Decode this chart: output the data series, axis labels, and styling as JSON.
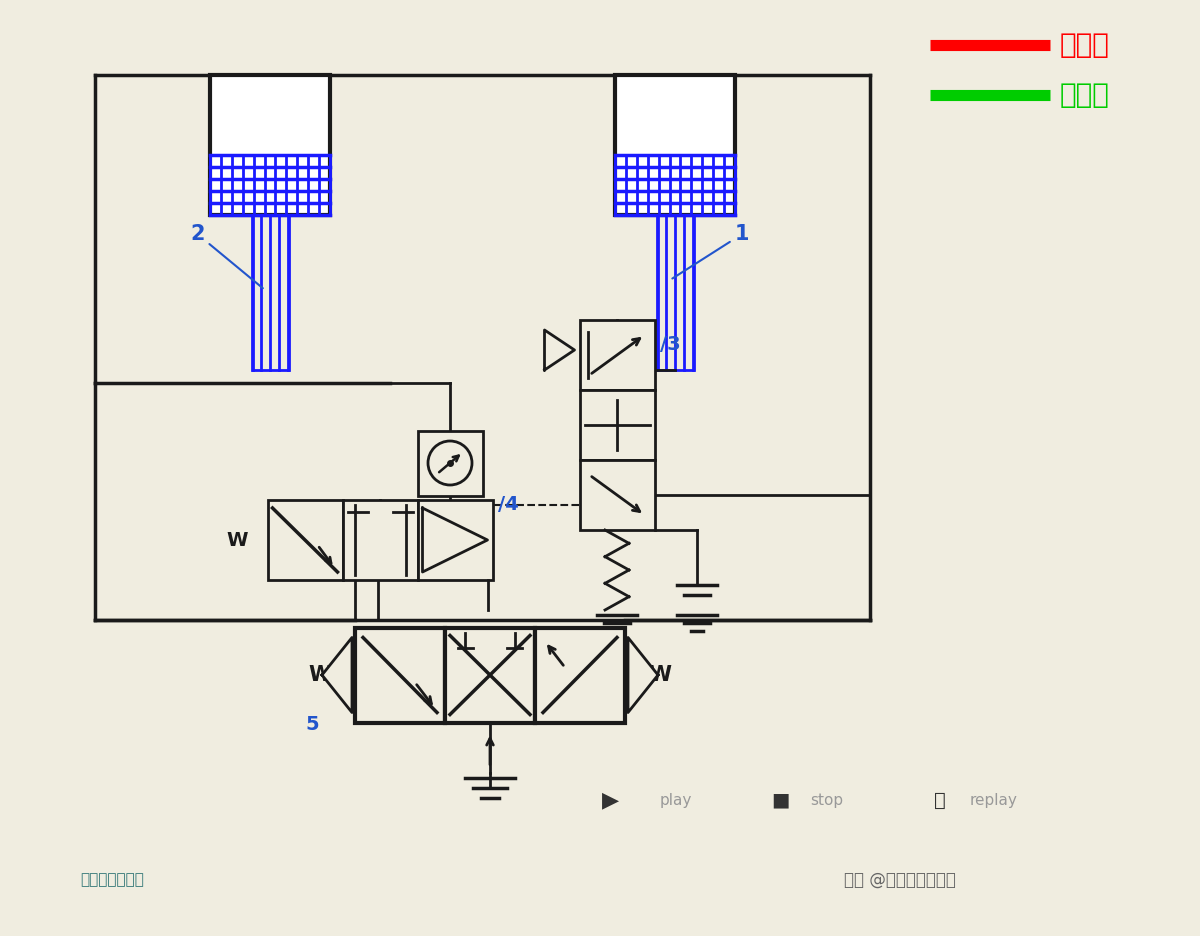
{
  "bg_color": "#f0ede0",
  "line_color": "#1a1a1a",
  "blue_color": "#1a1aff",
  "red_color": "#ff0000",
  "green_color": "#00cc00",
  "label_color": "#2255cc",
  "legend_red_label": "进油路",
  "legend_green_label": "回油路",
  "cylinder1_label": "1",
  "cylinder2_label": "2",
  "valve3_label": "/3",
  "valve4_label": "/4",
  "valve5_label": "5",
  "bottom_text1": "头条 @机械工程师笔记",
  "bottom_text2": "机械工程师笔记"
}
